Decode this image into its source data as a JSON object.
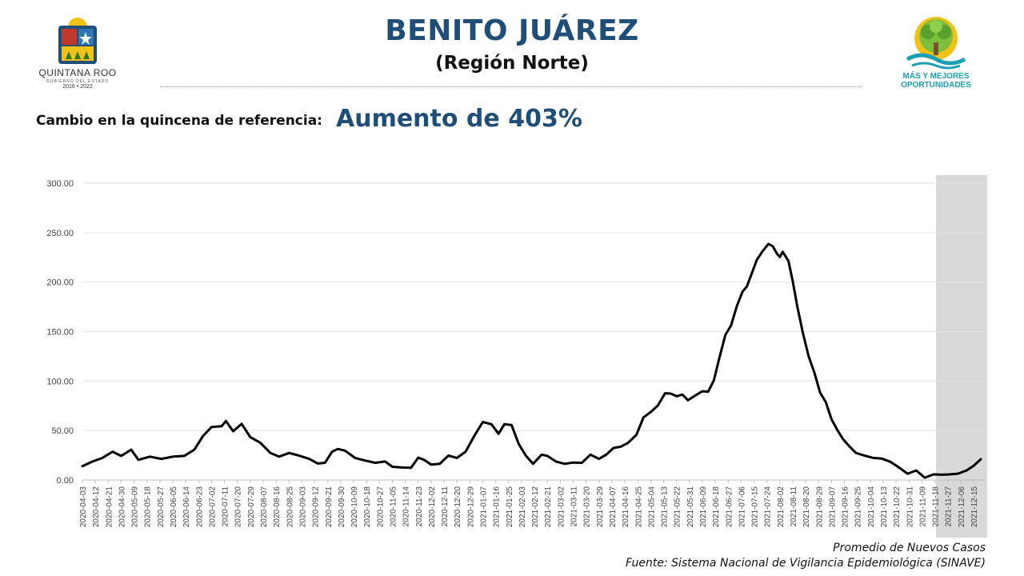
{
  "header": {
    "title": "BENITO JUÁREZ",
    "subtitle": "(Región Norte)",
    "change_label": "Cambio en la quincena de referencia:",
    "change_value": "Aumento de 403%"
  },
  "logos": {
    "left": {
      "name": "QUINTANA ROO",
      "tagline": "GOBIERNO DEL ESTADO",
      "years": "2016 • 2022"
    },
    "right": {
      "line1": "MÁS Y MEJORES",
      "line2": "OPORTUNIDADES"
    }
  },
  "colors": {
    "title": "#1f4e79",
    "line": "#000000",
    "highlight": "#d9d9d9",
    "logo_teal": "#1aa0b5",
    "logo_green": "#7cbf3a",
    "logo_yellow": "#f2c218"
  },
  "footer": {
    "series_label": "Promedio de Nuevos Casos",
    "source": "Fuente: Sistema Nacional de Vigilancia Epidemiológica (SINAVE)"
  },
  "chart_data": {
    "type": "line",
    "title": "",
    "xlabel": "",
    "ylabel": "",
    "ylim": [
      0,
      300
    ],
    "yticks": [
      0,
      50,
      100,
      150,
      200,
      250,
      300
    ],
    "ytick_labels": [
      "0.00",
      "50.00",
      "100.00",
      "150.00",
      "200.00",
      "250.00",
      "300.00"
    ],
    "grid": true,
    "x_start": "2020-04-03",
    "x_end": "2021-12-20",
    "highlight_range": [
      "2021-11-21",
      "2021-12-20"
    ],
    "categories": [
      "2020-04-03",
      "2020-04-12",
      "2020-04-21",
      "2020-04-30",
      "2020-05-09",
      "2020-05-18",
      "2020-05-27",
      "2020-06-05",
      "2020-06-14",
      "2020-06-23",
      "2020-07-02",
      "2020-07-11",
      "2020-07-20",
      "2020-07-29",
      "2020-08-07",
      "2020-08-16",
      "2020-08-25",
      "2020-09-03",
      "2020-09-12",
      "2020-09-21",
      "2020-09-30",
      "2020-10-09",
      "2020-10-18",
      "2020-10-27",
      "2020-11-05",
      "2020-11-14",
      "2020-11-23",
      "2020-12-02",
      "2020-12-11",
      "2020-12-20",
      "2020-12-29",
      "2021-01-07",
      "2021-01-16",
      "2021-01-25",
      "2021-02-03",
      "2021-02-12",
      "2021-02-21",
      "2021-03-02",
      "2021-03-11",
      "2021-03-20",
      "2021-03-29",
      "2021-04-07",
      "2021-04-16",
      "2021-04-25",
      "2021-05-04",
      "2021-05-13",
      "2021-05-22",
      "2021-05-31",
      "2021-06-09",
      "2021-06-18",
      "2021-06-27",
      "2021-07-06",
      "2021-07-15",
      "2021-07-24",
      "2021-08-02",
      "2021-08-11",
      "2021-08-20",
      "2021-08-29",
      "2021-09-07",
      "2021-09-16",
      "2021-09-25",
      "2021-10-04",
      "2021-10-13",
      "2021-10-22",
      "2021-10-31",
      "2021-11-09",
      "2021-11-18",
      "2021-11-27",
      "2021-12-06",
      "2021-12-15"
    ],
    "points": [
      [
        "2020-04-03",
        14
      ],
      [
        "2020-04-10",
        18
      ],
      [
        "2020-04-17",
        23
      ],
      [
        "2020-04-24",
        28
      ],
      [
        "2020-04-30",
        25
      ],
      [
        "2020-05-07",
        30
      ],
      [
        "2020-05-12",
        21
      ],
      [
        "2020-05-20",
        23
      ],
      [
        "2020-05-28",
        22
      ],
      [
        "2020-06-05",
        23
      ],
      [
        "2020-06-13",
        25
      ],
      [
        "2020-06-20",
        30
      ],
      [
        "2020-06-26",
        45
      ],
      [
        "2020-07-02",
        53
      ],
      [
        "2020-07-09",
        55
      ],
      [
        "2020-07-12",
        59
      ],
      [
        "2020-07-17",
        50
      ],
      [
        "2020-07-23",
        56
      ],
      [
        "2020-07-29",
        44
      ],
      [
        "2020-08-05",
        37
      ],
      [
        "2020-08-12",
        28
      ],
      [
        "2020-08-18",
        23
      ],
      [
        "2020-08-25",
        28
      ],
      [
        "2020-09-01",
        24
      ],
      [
        "2020-09-08",
        22
      ],
      [
        "2020-09-14",
        16
      ],
      [
        "2020-09-19",
        18
      ],
      [
        "2020-09-24",
        28
      ],
      [
        "2020-09-28",
        32
      ],
      [
        "2020-10-03",
        29
      ],
      [
        "2020-10-10",
        23
      ],
      [
        "2020-10-17",
        19
      ],
      [
        "2020-10-24",
        18
      ],
      [
        "2020-10-31",
        18
      ],
      [
        "2020-11-05",
        14
      ],
      [
        "2020-11-12",
        12
      ],
      [
        "2020-11-18",
        13
      ],
      [
        "2020-11-23",
        22
      ],
      [
        "2020-11-27",
        21
      ],
      [
        "2020-12-02",
        15
      ],
      [
        "2020-12-08",
        17
      ],
      [
        "2020-12-14",
        24
      ],
      [
        "2020-12-20",
        23
      ],
      [
        "2020-12-26",
        28
      ],
      [
        "2021-01-01",
        45
      ],
      [
        "2021-01-07",
        58
      ],
      [
        "2021-01-13",
        57
      ],
      [
        "2021-01-18",
        46
      ],
      [
        "2021-01-22",
        57
      ],
      [
        "2021-01-27",
        55
      ],
      [
        "2021-02-01",
        37
      ],
      [
        "2021-02-06",
        24
      ],
      [
        "2021-02-11",
        17
      ],
      [
        "2021-02-17",
        25
      ],
      [
        "2021-02-21",
        25
      ],
      [
        "2021-02-27",
        18
      ],
      [
        "2021-03-05",
        17
      ],
      [
        "2021-03-11",
        17
      ],
      [
        "2021-03-17",
        18
      ],
      [
        "2021-03-23",
        25
      ],
      [
        "2021-03-29",
        22
      ],
      [
        "2021-04-03",
        25
      ],
      [
        "2021-04-08",
        33
      ],
      [
        "2021-04-13",
        33
      ],
      [
        "2021-04-18",
        38
      ],
      [
        "2021-04-24",
        45
      ],
      [
        "2021-04-29",
        64
      ],
      [
        "2021-05-04",
        68
      ],
      [
        "2021-05-09",
        76
      ],
      [
        "2021-05-14",
        87
      ],
      [
        "2021-05-18",
        88
      ],
      [
        "2021-05-22",
        84
      ],
      [
        "2021-05-26",
        87
      ],
      [
        "2021-05-30",
        80
      ],
      [
        "2021-06-04",
        86
      ],
      [
        "2021-06-09",
        89
      ],
      [
        "2021-06-13",
        90
      ],
      [
        "2021-06-17",
        100
      ],
      [
        "2021-06-21",
        125
      ],
      [
        "2021-06-25",
        146
      ],
      [
        "2021-06-29",
        157
      ],
      [
        "2021-07-03",
        175
      ],
      [
        "2021-07-07",
        191
      ],
      [
        "2021-07-10",
        195
      ],
      [
        "2021-07-13",
        208
      ],
      [
        "2021-07-17",
        222
      ],
      [
        "2021-07-21",
        232
      ],
      [
        "2021-07-25",
        238
      ],
      [
        "2021-07-28",
        237
      ],
      [
        "2021-07-31",
        228
      ],
      [
        "2021-08-02",
        226
      ],
      [
        "2021-08-04",
        230
      ],
      [
        "2021-08-08",
        222
      ],
      [
        "2021-08-11",
        200
      ],
      [
        "2021-08-14",
        177
      ],
      [
        "2021-08-18",
        148
      ],
      [
        "2021-08-22",
        126
      ],
      [
        "2021-08-26",
        108
      ],
      [
        "2021-08-30",
        89
      ],
      [
        "2021-09-03",
        78
      ],
      [
        "2021-09-07",
        62
      ],
      [
        "2021-09-11",
        50
      ],
      [
        "2021-09-15",
        42
      ],
      [
        "2021-09-19",
        34
      ],
      [
        "2021-09-24",
        28
      ],
      [
        "2021-09-30",
        24
      ],
      [
        "2021-10-06",
        23
      ],
      [
        "2021-10-12",
        21
      ],
      [
        "2021-10-18",
        19
      ],
      [
        "2021-10-24",
        12
      ],
      [
        "2021-10-30",
        7
      ],
      [
        "2021-11-05",
        9
      ],
      [
        "2021-11-11",
        3
      ],
      [
        "2021-11-17",
        5
      ],
      [
        "2021-11-23",
        6
      ],
      [
        "2021-11-28",
        5
      ],
      [
        "2021-12-04",
        7
      ],
      [
        "2021-12-10",
        9
      ],
      [
        "2021-12-15",
        15
      ],
      [
        "2021-12-20",
        21
      ]
    ]
  }
}
